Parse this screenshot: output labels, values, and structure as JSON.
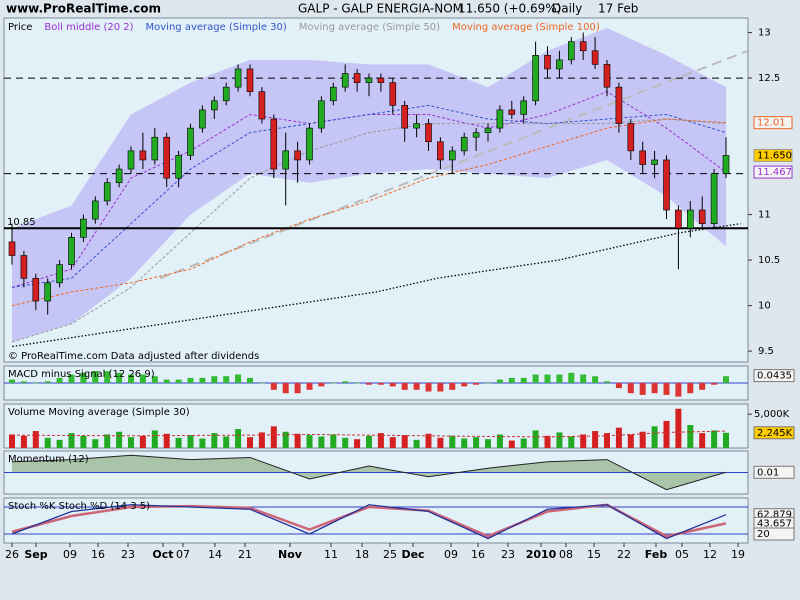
{
  "chart_data": {
    "type": "candlestick",
    "site": "www.ProRealTime.com",
    "title": "GALP - GALP ENERGIA-NOM",
    "price_text": "11.650 (+0.69%)",
    "period": "Daily",
    "date": "17 Feb",
    "footer": "© ProRealTime.com  Data adjusted after dividends",
    "price_label": "Price",
    "up_color": "#22aa22",
    "down_color": "#d42020",
    "open": [
      10.7,
      10.55,
      10.3,
      10.05,
      10.25,
      10.45,
      10.75,
      10.95,
      11.15,
      11.35,
      11.5,
      11.7,
      11.6,
      11.85,
      11.4,
      11.65,
      11.95,
      12.15,
      12.25,
      12.4,
      12.6,
      12.35,
      12.05,
      11.5,
      11.7,
      11.6,
      11.95,
      12.25,
      12.4,
      12.55,
      12.45,
      12.5,
      12.45,
      12.2,
      11.95,
      12.0,
      11.8,
      11.6,
      11.7,
      11.85,
      11.9,
      11.95,
      12.15,
      12.1,
      12.25,
      12.75,
      12.6,
      12.7,
      12.9,
      12.8,
      12.65,
      12.4,
      12.0,
      11.7,
      11.55,
      11.6,
      11.05,
      10.85,
      11.05,
      10.9,
      11.45
    ],
    "high": [
      10.9,
      10.6,
      10.35,
      10.3,
      10.5,
      10.8,
      11.0,
      11.2,
      11.4,
      11.55,
      11.75,
      11.9,
      11.95,
      11.9,
      11.7,
      12.0,
      12.2,
      12.3,
      12.45,
      12.65,
      12.65,
      12.4,
      12.1,
      11.9,
      11.8,
      12.0,
      12.3,
      12.45,
      12.65,
      12.6,
      12.55,
      12.55,
      12.5,
      12.25,
      12.1,
      12.05,
      11.85,
      11.75,
      11.9,
      11.95,
      12.0,
      12.2,
      12.25,
      12.3,
      12.9,
      12.85,
      12.8,
      12.95,
      13.0,
      12.95,
      12.7,
      12.45,
      12.05,
      11.8,
      11.7,
      11.65,
      11.1,
      11.15,
      11.2,
      11.5,
      11.85
    ],
    "low": [
      10.45,
      10.2,
      9.95,
      9.9,
      10.2,
      10.4,
      10.7,
      10.9,
      11.1,
      11.3,
      11.45,
      11.5,
      11.55,
      11.3,
      11.3,
      11.6,
      11.9,
      12.05,
      12.2,
      12.35,
      12.3,
      12.0,
      11.4,
      11.1,
      11.35,
      11.55,
      11.9,
      12.2,
      12.35,
      12.35,
      12.3,
      12.35,
      12.1,
      11.8,
      11.85,
      11.7,
      11.5,
      11.45,
      11.65,
      11.7,
      11.8,
      11.9,
      12.05,
      12.0,
      12.2,
      12.5,
      12.5,
      12.65,
      12.7,
      12.6,
      12.3,
      11.9,
      11.6,
      11.45,
      11.4,
      10.95,
      10.4,
      10.75,
      10.85,
      10.85,
      11.4
    ],
    "close": [
      10.55,
      10.3,
      10.05,
      10.25,
      10.45,
      10.75,
      10.95,
      11.15,
      11.35,
      11.5,
      11.7,
      11.6,
      11.85,
      11.4,
      11.65,
      11.95,
      12.15,
      12.25,
      12.4,
      12.6,
      12.35,
      12.05,
      11.5,
      11.7,
      11.6,
      11.95,
      12.25,
      12.4,
      12.55,
      12.45,
      12.5,
      12.45,
      12.2,
      11.95,
      12.0,
      11.8,
      11.6,
      11.7,
      11.85,
      11.9,
      11.95,
      12.15,
      12.1,
      12.25,
      12.75,
      12.6,
      12.7,
      12.9,
      12.8,
      12.65,
      12.4,
      12.0,
      11.7,
      11.55,
      11.6,
      11.05,
      10.85,
      11.05,
      10.9,
      11.45,
      11.65
    ],
    "ylim": [
      9.38,
      13.16
    ],
    "yticks": [
      13,
      12.5,
      11,
      10.5,
      10,
      9.5
    ],
    "bollinger": {
      "color": "#c6c6f6",
      "upper": [
        10.85,
        11.1,
        12.1,
        12.45,
        12.7,
        12.7,
        12.65,
        12.65,
        12.4,
        12.8,
        13.05,
        12.75,
        12.4
      ],
      "lower": [
        9.6,
        9.8,
        10.3,
        11.0,
        11.45,
        11.35,
        11.45,
        11.5,
        11.45,
        11.4,
        11.6,
        11.2,
        10.65
      ]
    },
    "series": [
      {
        "name": "Boll middle (20 2)",
        "color": "#9933cc",
        "values": [
          10.2,
          10.4,
          11.4,
          11.7,
          12.1,
          12.0,
          12.1,
          12.1,
          11.95,
          12.1,
          12.35,
          11.95,
          11.467
        ]
      },
      {
        "name": "Moving average (Simple 30)",
        "color": "#3355cc",
        "values": [
          10.2,
          10.3,
          10.9,
          11.5,
          11.9,
          12.0,
          12.1,
          12.2,
          12.05,
          12.0,
          12.05,
          12.1,
          11.9
        ]
      },
      {
        "name": "Moving average (Simple 50)",
        "color": "#999999",
        "values": [
          9.6,
          9.8,
          10.2,
          10.8,
          11.4,
          11.7,
          11.9,
          12.0,
          12.0,
          12.0,
          12.0,
          12.05,
          12.0
        ]
      },
      {
        "name": "Moving average (Simple 100)",
        "color": "#ee6622",
        "values": [
          10.0,
          10.15,
          10.25,
          10.4,
          10.7,
          10.95,
          11.15,
          11.4,
          11.55,
          11.75,
          11.95,
          12.05,
          12.01
        ]
      }
    ],
    "long_average": {
      "color": "#000000",
      "values": [
        9.55,
        9.65,
        9.75,
        9.85,
        9.95,
        10.05,
        10.15,
        10.3,
        10.4,
        10.5,
        10.65,
        10.8,
        10.9
      ]
    },
    "trendline": {
      "color": "#bbbbbb",
      "values": [
        10.3,
        12.8
      ]
    },
    "dashed_levels": [
      12.5,
      11.45
    ],
    "support": {
      "value": 10.85,
      "label": "10.85"
    },
    "badges": [
      {
        "value": 12.01,
        "label": "12.01",
        "color": "#ee6622",
        "fill": "#f4f4f4"
      },
      {
        "value": 11.65,
        "label": "11.650",
        "color": "#000000",
        "fill": "#ffcc00"
      },
      {
        "value": 11.467,
        "label": "11.467",
        "color": "#9933cc",
        "fill": "#f4f4f4"
      }
    ],
    "macd": {
      "label": "MACD minus Signal (12 26 9)",
      "ylim": [
        -0.1,
        0.1
      ],
      "values": [
        0.02,
        0.01,
        0.0,
        0.01,
        0.03,
        0.05,
        0.06,
        0.07,
        0.07,
        0.06,
        0.05,
        0.05,
        0.04,
        0.02,
        0.02,
        0.03,
        0.03,
        0.04,
        0.04,
        0.05,
        0.03,
        0.0,
        -0.04,
        -0.06,
        -0.06,
        -0.04,
        -0.02,
        0.0,
        0.01,
        0.0,
        -0.01,
        -0.01,
        -0.02,
        -0.04,
        -0.04,
        -0.05,
        -0.05,
        -0.04,
        -0.02,
        -0.01,
        0.0,
        0.02,
        0.03,
        0.03,
        0.05,
        0.05,
        0.05,
        0.06,
        0.05,
        0.04,
        0.01,
        -0.03,
        -0.06,
        -0.07,
        -0.06,
        -0.07,
        -0.08,
        -0.06,
        -0.04,
        -0.01,
        0.04
      ],
      "badge": {
        "value": 0.0435,
        "label": "0.0435"
      }
    },
    "volume": {
      "label": "Volume Moving average (Simple 30)",
      "ylim": [
        0,
        6500
      ],
      "yticks": [
        {
          "value": 5000,
          "label": "5,000K"
        }
      ],
      "values": [
        2000,
        1800,
        2500,
        1500,
        1200,
        2200,
        1800,
        1300,
        2000,
        2400,
        1600,
        1800,
        2600,
        2100,
        1500,
        1900,
        1400,
        2200,
        1700,
        2800,
        1600,
        2300,
        3200,
        2400,
        2100,
        1900,
        1700,
        2000,
        1500,
        1300,
        1800,
        2200,
        1600,
        1900,
        1200,
        2100,
        1500,
        1800,
        1400,
        1600,
        1300,
        2000,
        1100,
        1400,
        2600,
        1800,
        2300,
        1700,
        2000,
        2500,
        2200,
        3000,
        2000,
        2400,
        3200,
        4000,
        5800,
        3400,
        2200,
        2600,
        2245
      ],
      "average": [
        1900,
        1850,
        1800,
        1850,
        1900,
        2000,
        1900,
        1800,
        1700,
        1650,
        1800,
        2300,
        2500
      ],
      "badge": {
        "value": 2245,
        "label": "2,245K"
      }
    },
    "momentum": {
      "label": "Momentum (12)",
      "ylim": [
        -1,
        1
      ],
      "values": [
        0.5,
        0.6,
        0.8,
        0.6,
        0.7,
        -0.3,
        0.3,
        -0.2,
        0.2,
        0.5,
        0.6,
        -0.8,
        0.01
      ],
      "badge": {
        "value": 0.01,
        "label": "0.01"
      }
    },
    "stoch": {
      "label": "Stoch %K Stoch %D (14 3 5)",
      "ylim": [
        0,
        100
      ],
      "levels": [
        80,
        20
      ],
      "k": [
        20,
        70,
        85,
        80,
        75,
        20,
        85,
        70,
        10,
        75,
        85,
        10,
        62.879
      ],
      "d": [
        25,
        60,
        80,
        82,
        78,
        30,
        80,
        72,
        15,
        70,
        85,
        15,
        43.657
      ],
      "badges": [
        {
          "value": 62.879,
          "label": "62.879"
        },
        {
          "value": 43.657,
          "label": "43.657"
        },
        {
          "value": 20,
          "label": "20"
        }
      ]
    },
    "x_labels": [
      "26",
      "Sep",
      "09",
      "16",
      "23",
      "Oct",
      "07",
      "14",
      "21",
      "Nov",
      "11",
      "18",
      "25",
      "Dec",
      "09",
      "16",
      "23",
      "2010",
      "08",
      "15",
      "22",
      "Feb",
      "05",
      "12",
      "19"
    ]
  }
}
